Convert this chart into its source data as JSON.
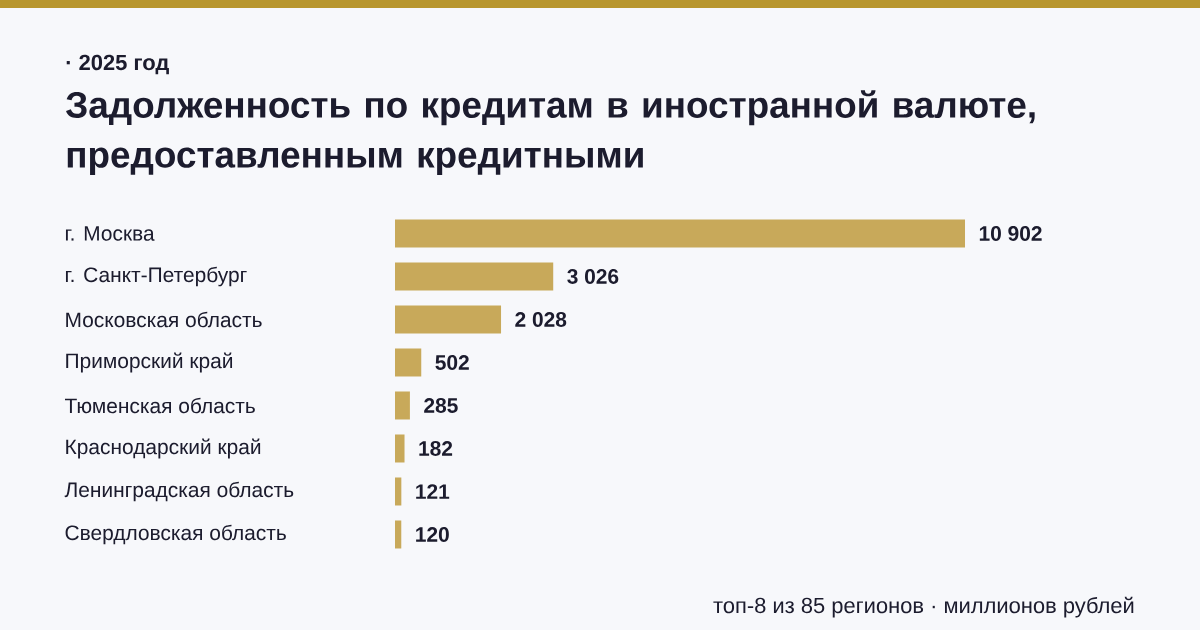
{
  "chart_data": {
    "type": "bar",
    "orientation": "horizontal",
    "subtitle": "· 2025 год",
    "title": "Задолженность по кредитам в иностранной валюте, предоставленным кредитными",
    "categories": [
      "г. Москва",
      "г. Санкт-Петербург",
      "Московская область",
      "Приморский край",
      "Тюменская область",
      "Краснодарский край",
      "Ленинградская область",
      "Свердловская область"
    ],
    "values": [
      10902,
      3026,
      2028,
      502,
      285,
      182,
      121,
      120
    ],
    "value_labels": [
      "10 902",
      "3 026",
      "2 028",
      "502",
      "285",
      "182",
      "121",
      "120"
    ],
    "color": "#c8a95a",
    "annotations": [
      "топ-8 из 85 регионов · миллионов рублей"
    ]
  }
}
